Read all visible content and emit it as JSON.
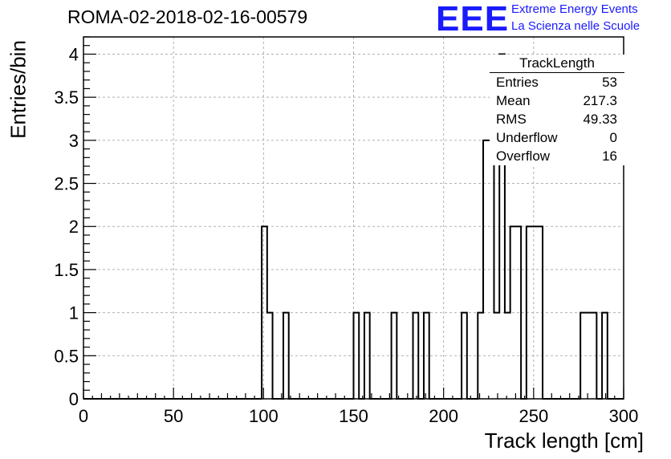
{
  "header": {
    "run_title": "ROMA-02-2018-02-16-00579",
    "logo_text": "EEE",
    "logo_line1": "Extreme Energy Events",
    "logo_line2": "La Scienza nelle Scuole"
  },
  "stats_box": {
    "title": "TrackLength",
    "rows": [
      {
        "key": "Entries",
        "value": "53"
      },
      {
        "key": "Mean",
        "value": "217.3"
      },
      {
        "key": "RMS",
        "value": "49.33"
      },
      {
        "key": "Underflow",
        "value": "0"
      },
      {
        "key": "Overflow",
        "value": "16"
      }
    ]
  },
  "chart_data": {
    "type": "bar",
    "title": "ROMA-02-2018-02-16-00579",
    "xlabel": "Track length [cm]",
    "ylabel": "Entries/bin",
    "xlim": [
      0,
      300
    ],
    "ylim": [
      0,
      4.2
    ],
    "bin_width": 3,
    "grid": true,
    "x_ticks": [
      0,
      50,
      100,
      150,
      200,
      250,
      300
    ],
    "y_ticks": [
      0,
      0.5,
      1,
      1.5,
      2,
      2.5,
      3,
      3.5,
      4
    ],
    "x_tick_labels": [
      "0",
      "50",
      "100",
      "150",
      "200",
      "250",
      "300"
    ],
    "y_tick_labels": [
      "0",
      "0.5",
      "1",
      "1.5",
      "2",
      "2.5",
      "3",
      "3.5",
      "4"
    ],
    "bins": [
      {
        "x": 99,
        "value": 2
      },
      {
        "x": 102,
        "value": 1
      },
      {
        "x": 111,
        "value": 1
      },
      {
        "x": 150,
        "value": 1
      },
      {
        "x": 156,
        "value": 1
      },
      {
        "x": 171,
        "value": 1
      },
      {
        "x": 183,
        "value": 1
      },
      {
        "x": 189,
        "value": 1
      },
      {
        "x": 210,
        "value": 1
      },
      {
        "x": 219,
        "value": 1
      },
      {
        "x": 222,
        "value": 3
      },
      {
        "x": 225,
        "value": 3
      },
      {
        "x": 228,
        "value": 1
      },
      {
        "x": 231,
        "value": 4
      },
      {
        "x": 234,
        "value": 1
      },
      {
        "x": 237,
        "value": 2
      },
      {
        "x": 240,
        "value": 2
      },
      {
        "x": 246,
        "value": 2
      },
      {
        "x": 249,
        "value": 2
      },
      {
        "x": 252,
        "value": 2
      },
      {
        "x": 276,
        "value": 1
      },
      {
        "x": 279,
        "value": 1
      },
      {
        "x": 282,
        "value": 1
      },
      {
        "x": 288,
        "value": 1
      }
    ]
  }
}
